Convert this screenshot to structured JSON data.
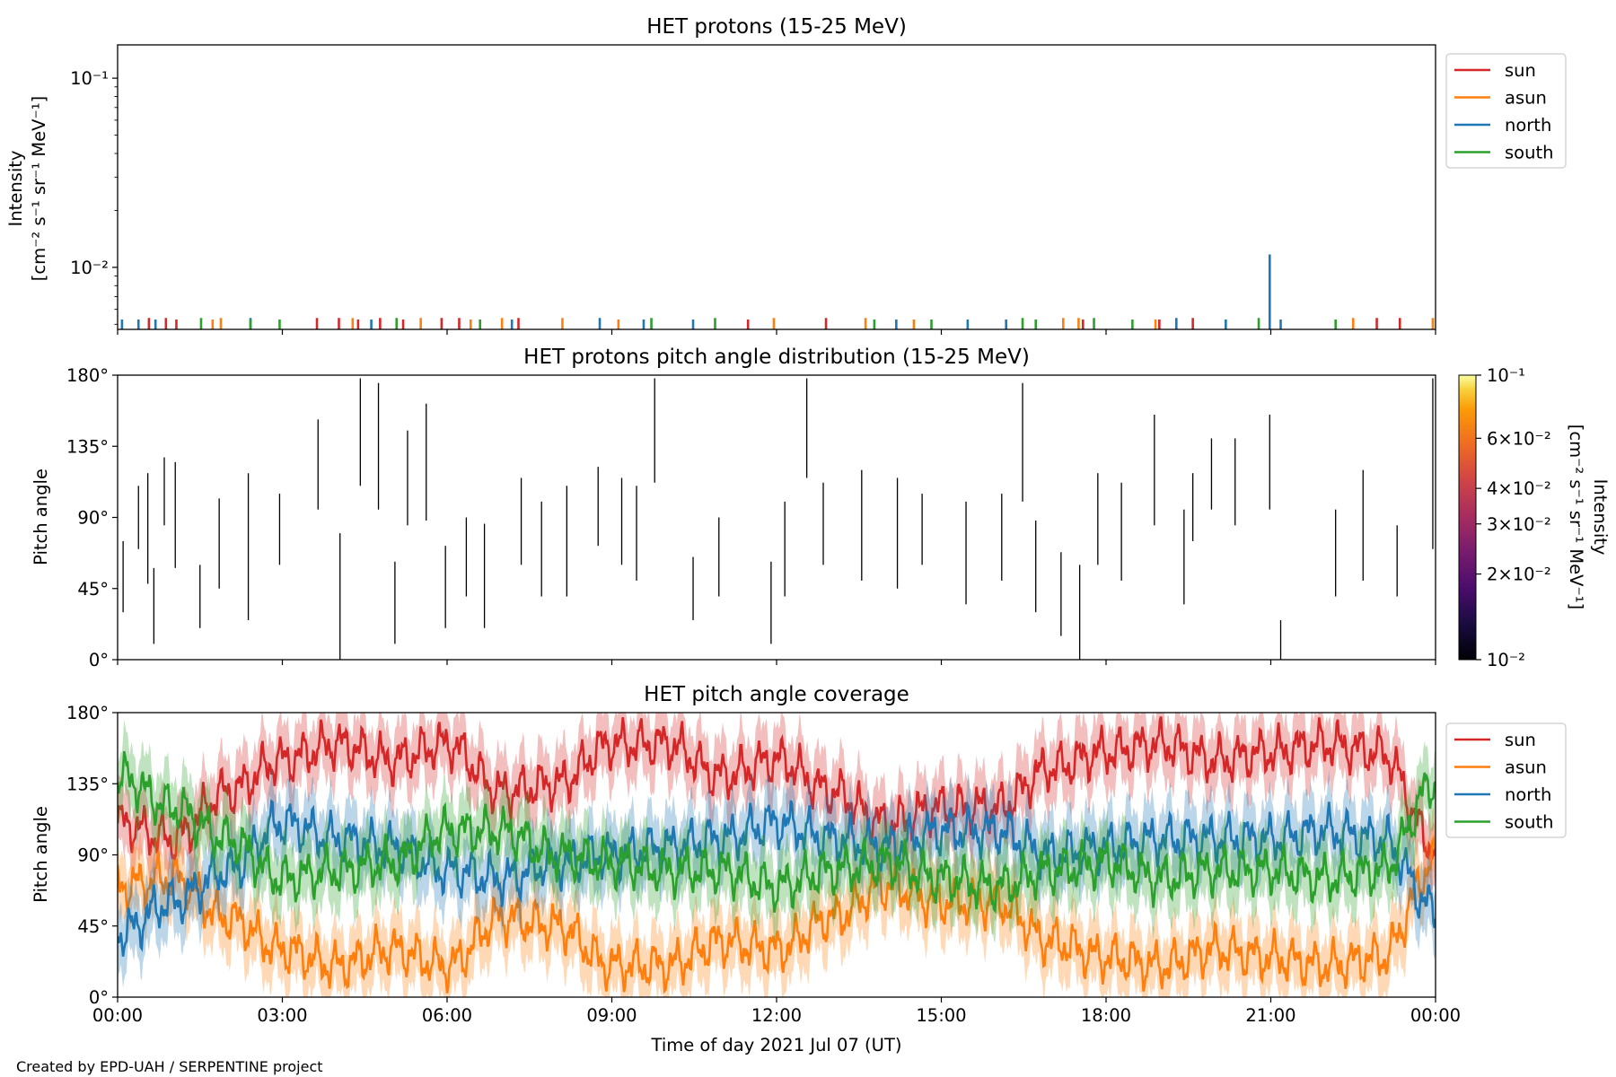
{
  "figure": {
    "credit": "Created by EPD-UAH / SERPENTINE project",
    "xlabel": "Time of day 2021 Jul 07 (UT)",
    "xticks": [
      "00:00",
      "03:00",
      "06:00",
      "09:00",
      "12:00",
      "15:00",
      "18:00",
      "21:00",
      "00:00"
    ]
  },
  "colors": {
    "sun": "#d62728",
    "asun": "#ff7f0e",
    "north": "#1f77b4",
    "south": "#2ca02c",
    "axis": "#000000"
  },
  "chart_data": [
    {
      "type": "line",
      "title": "HET protons (15-25 MeV)",
      "ylabel_line1": "Intensity",
      "ylabel_line2": "[cm⁻² s⁻¹ sr⁻¹ MeV⁻¹]",
      "yscale": "log",
      "ylim": [
        0.0047,
        0.15
      ],
      "xlim_hours": [
        0,
        24
      ],
      "yticks": [
        {
          "value": 0.01,
          "label": "10⁻²"
        },
        {
          "value": 0.1,
          "label": "10⁻¹"
        }
      ],
      "legend": {
        "placement": "outside-right",
        "entries": [
          "sun",
          "asun",
          "north",
          "south"
        ]
      },
      "series": [
        {
          "name": "sun",
          "spikes": [
            {
              "t": 0.57,
              "v": 0.0054
            },
            {
              "t": 0.88,
              "v": 0.0054
            },
            {
              "t": 1.07,
              "v": 0.0053
            },
            {
              "t": 3.63,
              "v": 0.0054
            },
            {
              "t": 4.03,
              "v": 0.0054
            },
            {
              "t": 4.38,
              "v": 0.0053
            },
            {
              "t": 4.78,
              "v": 0.0054
            },
            {
              "t": 5.2,
              "v": 0.0053
            },
            {
              "t": 5.9,
              "v": 0.0054
            },
            {
              "t": 6.22,
              "v": 0.0054
            },
            {
              "t": 7.3,
              "v": 0.0054
            },
            {
              "t": 11.48,
              "v": 0.0053
            },
            {
              "t": 12.9,
              "v": 0.0054
            },
            {
              "t": 17.58,
              "v": 0.0053
            },
            {
              "t": 18.97,
              "v": 0.0053
            },
            {
              "t": 19.58,
              "v": 0.0054
            },
            {
              "t": 22.93,
              "v": 0.0054
            },
            {
              "t": 23.35,
              "v": 0.0054
            }
          ]
        },
        {
          "name": "asun",
          "spikes": [
            {
              "t": 1.73,
              "v": 0.0053
            },
            {
              "t": 1.88,
              "v": 0.0054
            },
            {
              "t": 4.28,
              "v": 0.0054
            },
            {
              "t": 5.52,
              "v": 0.0054
            },
            {
              "t": 6.43,
              "v": 0.0053
            },
            {
              "t": 7.0,
              "v": 0.0054
            },
            {
              "t": 8.1,
              "v": 0.0054
            },
            {
              "t": 9.12,
              "v": 0.0053
            },
            {
              "t": 11.95,
              "v": 0.0054
            },
            {
              "t": 13.62,
              "v": 0.0054
            },
            {
              "t": 14.5,
              "v": 0.0053
            },
            {
              "t": 17.22,
              "v": 0.0054
            },
            {
              "t": 17.5,
              "v": 0.0054
            },
            {
              "t": 18.9,
              "v": 0.0053
            },
            {
              "t": 22.5,
              "v": 0.0054
            },
            {
              "t": 23.95,
              "v": 0.0054
            }
          ]
        },
        {
          "name": "north",
          "spikes": [
            {
              "t": 0.08,
              "v": 0.0053
            },
            {
              "t": 0.38,
              "v": 0.0053
            },
            {
              "t": 0.69,
              "v": 0.0053
            },
            {
              "t": 2.42,
              "v": 0.0054
            },
            {
              "t": 4.62,
              "v": 0.0053
            },
            {
              "t": 7.18,
              "v": 0.0053
            },
            {
              "t": 8.78,
              "v": 0.0054
            },
            {
              "t": 9.58,
              "v": 0.0053
            },
            {
              "t": 10.48,
              "v": 0.0053
            },
            {
              "t": 14.18,
              "v": 0.0053
            },
            {
              "t": 15.48,
              "v": 0.0053
            },
            {
              "t": 16.18,
              "v": 0.0053
            },
            {
              "t": 19.28,
              "v": 0.0054
            },
            {
              "t": 20.18,
              "v": 0.0053
            },
            {
              "t": 20.98,
              "v": 0.0117
            },
            {
              "t": 21.18,
              "v": 0.0053
            }
          ]
        },
        {
          "name": "south",
          "spikes": [
            {
              "t": 1.52,
              "v": 0.0054
            },
            {
              "t": 2.42,
              "v": 0.0053
            },
            {
              "t": 2.95,
              "v": 0.0053
            },
            {
              "t": 5.08,
              "v": 0.0054
            },
            {
              "t": 6.6,
              "v": 0.0053
            },
            {
              "t": 9.72,
              "v": 0.0054
            },
            {
              "t": 10.88,
              "v": 0.0054
            },
            {
              "t": 13.78,
              "v": 0.0053
            },
            {
              "t": 14.82,
              "v": 0.0053
            },
            {
              "t": 16.48,
              "v": 0.0054
            },
            {
              "t": 16.72,
              "v": 0.0053
            },
            {
              "t": 17.78,
              "v": 0.0054
            },
            {
              "t": 18.48,
              "v": 0.0053
            },
            {
              "t": 20.78,
              "v": 0.0054
            },
            {
              "t": 22.18,
              "v": 0.0053
            }
          ]
        }
      ]
    },
    {
      "type": "heatmap",
      "title": "HET protons pitch angle distribution (15-25 MeV)",
      "ylabel": "Pitch angle",
      "ylim": [
        0,
        180
      ],
      "xlim_hours": [
        0,
        24
      ],
      "yticks": [
        "0°",
        "45°",
        "90°",
        "135°",
        "180°"
      ],
      "colorbar": {
        "label": "Intensity",
        "units": "[cm⁻² s⁻¹ sr⁻¹ MeV⁻¹]",
        "scale": "log",
        "range": [
          0.01,
          0.1
        ],
        "colormap": "inferno",
        "ticks": [
          {
            "value": 0.01,
            "label": "10⁻²"
          },
          {
            "value": 0.02,
            "label": "2×10⁻²"
          },
          {
            "value": 0.03,
            "label": "3×10⁻²"
          },
          {
            "value": 0.04,
            "label": "4×10⁻²"
          },
          {
            "value": 0.06,
            "label": "6×10⁻²"
          },
          {
            "value": 0.1,
            "label": "10⁻¹"
          }
        ]
      },
      "segments": [
        [
          0.1,
          30,
          75
        ],
        [
          0.38,
          70,
          110
        ],
        [
          0.55,
          48,
          118
        ],
        [
          0.66,
          10,
          58
        ],
        [
          0.85,
          85,
          128
        ],
        [
          1.05,
          58,
          125
        ],
        [
          1.5,
          20,
          60
        ],
        [
          1.85,
          45,
          102
        ],
        [
          2.38,
          25,
          118
        ],
        [
          2.95,
          60,
          105
        ],
        [
          3.65,
          95,
          152
        ],
        [
          4.05,
          0,
          80
        ],
        [
          4.42,
          110,
          178
        ],
        [
          4.75,
          95,
          175
        ],
        [
          5.05,
          10,
          62
        ],
        [
          5.28,
          85,
          145
        ],
        [
          5.62,
          88,
          162
        ],
        [
          5.97,
          20,
          72
        ],
        [
          6.35,
          40,
          90
        ],
        [
          6.68,
          20,
          86
        ],
        [
          7.35,
          60,
          115
        ],
        [
          7.72,
          40,
          100
        ],
        [
          8.18,
          40,
          110
        ],
        [
          8.75,
          72,
          122
        ],
        [
          9.18,
          60,
          115
        ],
        [
          9.45,
          50,
          110
        ],
        [
          9.78,
          112,
          178
        ],
        [
          10.48,
          25,
          65
        ],
        [
          10.95,
          40,
          90
        ],
        [
          11.9,
          10,
          62
        ],
        [
          12.15,
          40,
          100
        ],
        [
          12.55,
          115,
          178
        ],
        [
          12.85,
          60,
          112
        ],
        [
          13.55,
          50,
          120
        ],
        [
          14.2,
          45,
          115
        ],
        [
          14.65,
          60,
          105
        ],
        [
          15.45,
          35,
          100
        ],
        [
          16.1,
          50,
          105
        ],
        [
          16.48,
          100,
          175
        ],
        [
          16.72,
          30,
          88
        ],
        [
          17.18,
          15,
          68
        ],
        [
          17.52,
          0,
          60
        ],
        [
          17.85,
          60,
          118
        ],
        [
          18.28,
          50,
          112
        ],
        [
          18.88,
          85,
          155
        ],
        [
          19.42,
          35,
          95
        ],
        [
          19.58,
          75,
          118
        ],
        [
          19.92,
          95,
          140
        ],
        [
          20.35,
          85,
          140
        ],
        [
          20.98,
          95,
          155
        ],
        [
          21.18,
          0,
          25
        ],
        [
          22.18,
          40,
          95
        ],
        [
          22.68,
          50,
          120
        ],
        [
          23.3,
          40,
          85
        ],
        [
          23.95,
          70,
          178
        ]
      ]
    },
    {
      "type": "area",
      "title": "HET pitch angle coverage",
      "ylabel": "Pitch angle",
      "ylim": [
        0,
        180
      ],
      "xlim_hours": [
        0,
        24
      ],
      "yticks": [
        "0°",
        "45°",
        "90°",
        "135°",
        "180°"
      ],
      "legend": {
        "placement": "outside-right",
        "entries": [
          "sun",
          "asun",
          "north",
          "south"
        ]
      },
      "band_half_width_deg": 20,
      "series": [
        {
          "name": "sun",
          "x": [
            0,
            1,
            2,
            3,
            4,
            5,
            6,
            7,
            8,
            9,
            10,
            11,
            12,
            13,
            14,
            15,
            16,
            17,
            18,
            19,
            20,
            21,
            22,
            23,
            24
          ],
          "y": [
            110,
            100,
            130,
            150,
            160,
            150,
            160,
            130,
            135,
            160,
            160,
            140,
            150,
            130,
            110,
            120,
            120,
            145,
            155,
            160,
            150,
            155,
            160,
            155,
            95
          ]
        },
        {
          "name": "asun",
          "x": [
            0,
            1,
            2,
            3,
            4,
            5,
            6,
            7,
            8,
            9,
            10,
            11,
            12,
            13,
            14,
            15,
            16,
            17,
            18,
            19,
            20,
            21,
            22,
            23,
            24
          ],
          "y": [
            70,
            75,
            50,
            30,
            20,
            30,
            20,
            50,
            45,
            20,
            20,
            35,
            30,
            50,
            70,
            60,
            60,
            35,
            25,
            20,
            30,
            25,
            20,
            25,
            85
          ]
        },
        {
          "name": "north",
          "x": [
            0,
            1,
            2,
            3,
            4,
            5,
            6,
            7,
            8,
            9,
            10,
            11,
            12,
            13,
            14,
            15,
            16,
            17,
            18,
            19,
            20,
            21,
            22,
            23,
            24
          ],
          "y": [
            40,
            60,
            80,
            110,
            100,
            95,
            80,
            75,
            85,
            90,
            95,
            100,
            110,
            100,
            95,
            105,
            105,
            90,
            95,
            100,
            100,
            100,
            105,
            100,
            55
          ]
        },
        {
          "name": "south",
          "x": [
            0,
            1,
            2,
            3,
            4,
            5,
            6,
            7,
            8,
            9,
            10,
            11,
            12,
            13,
            14,
            15,
            16,
            17,
            18,
            19,
            20,
            21,
            22,
            23,
            24
          ],
          "y": [
            140,
            120,
            100,
            75,
            80,
            85,
            105,
            105,
            90,
            85,
            80,
            80,
            70,
            80,
            85,
            75,
            70,
            80,
            85,
            75,
            80,
            80,
            75,
            80,
            135
          ]
        }
      ]
    }
  ]
}
